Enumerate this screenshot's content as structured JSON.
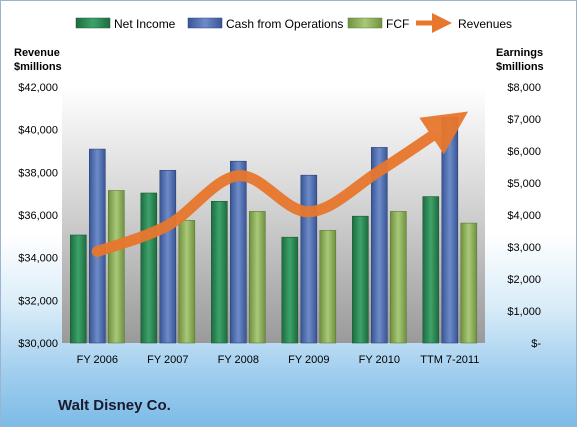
{
  "chart_data": {
    "type": "bar",
    "company": "Walt Disney Co.",
    "categories": [
      "FY 2006",
      "FY 2007",
      "FY 2008",
      "FY 2009",
      "FY 2010",
      "TTM 7-2011"
    ],
    "left_axis": {
      "title_line1": "Revenue",
      "title_line2": "$millions",
      "min": 30000,
      "max": 42000,
      "step": 2000,
      "tick_labels": [
        "$30,000",
        "$32,000",
        "$34,000",
        "$36,000",
        "$38,000",
        "$40,000",
        "$42,000"
      ]
    },
    "right_axis": {
      "title_line1": "Earnings",
      "title_line2": "$millions",
      "min": 0,
      "max": 8000,
      "step": 1000,
      "tick_labels": [
        "$-",
        "$1,000",
        "$2,000",
        "$3,000",
        "$4,000",
        "$5,000",
        "$6,000",
        "$7,000",
        "$8,000"
      ]
    },
    "bar_series": [
      {
        "name": "Net Income",
        "color": "#2e8b57",
        "values": [
          3374,
          4687,
          4427,
          3307,
          3963,
          4575
        ]
      },
      {
        "name": "Cash from Operations",
        "color": "#4f6fb0",
        "values": [
          6058,
          5398,
          5681,
          5244,
          6113,
          7050
        ]
      },
      {
        "name": "FCF",
        "color": "#8fb35a",
        "values": [
          4766,
          3832,
          4111,
          3518,
          4114,
          3748
        ]
      }
    ],
    "line_series": {
      "name": "Revenues",
      "color": "#e8772e",
      "axis": "left",
      "values": [
        34285,
        35510,
        37843,
        36149,
        38063,
        40275
      ]
    },
    "legend_position": "top",
    "grid": false
  }
}
